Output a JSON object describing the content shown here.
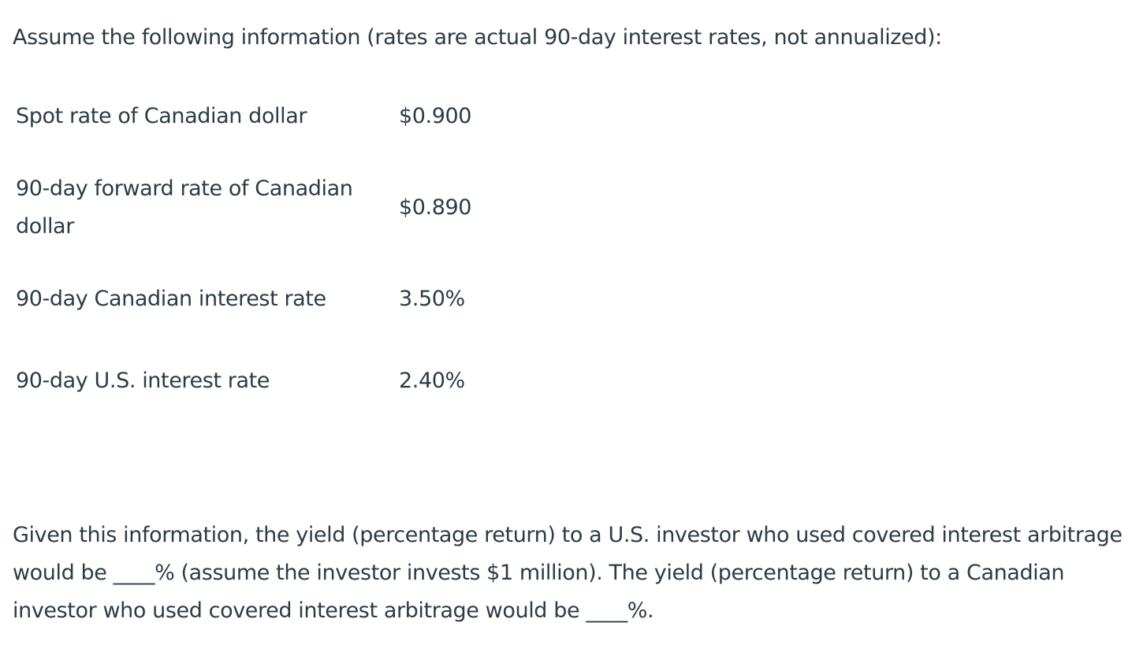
{
  "intro": "Assume the following information (rates are actual 90-day interest rates, not annualized):",
  "rows": [
    {
      "label": "Spot rate of Canadian dollar",
      "value": "$0.900"
    },
    {
      "label": "90-day forward rate of Canadian dollar",
      "value": "$0.890"
    },
    {
      "label": "90-day Canadian interest rate",
      "value": "3.50%"
    },
    {
      "label": "90-day U.S. interest rate",
      "value": "2.40%"
    }
  ],
  "question": "Given this information, the yield (percentage return) to a U.S. investor who used covered interest arbitrage would be ____% (assume the investor invests $1 million). The yield (percentage return) to a Canadian investor who used covered interest arbitrage would be ____%."
}
